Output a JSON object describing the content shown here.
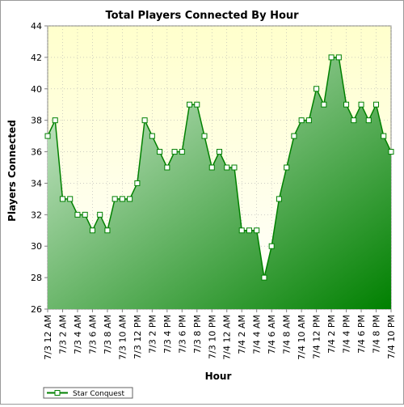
{
  "chart_data": {
    "type": "area",
    "title": "Total Players Connected By Hour",
    "xlabel": "Hour",
    "ylabel": "Players Connected",
    "ylim": [
      26,
      44
    ],
    "yticks": [
      26,
      28,
      30,
      32,
      34,
      36,
      38,
      40,
      42,
      44
    ],
    "grid": true,
    "legend_position": "bottom-left",
    "x_tick_labels": [
      "7/3 12 AM",
      "7/3 2 AM",
      "7/3 4 AM",
      "7/3 6 AM",
      "7/3 8 AM",
      "7/3 10 AM",
      "7/3 12 PM",
      "7/3 2 PM",
      "7/3 4 PM",
      "7/3 6 PM",
      "7/3 8 PM",
      "7/3 10 PM",
      "7/4 12 AM",
      "7/4 2 AM",
      "7/4 4 AM",
      "7/4 6 AM",
      "7/4 8 AM",
      "7/4 10 AM",
      "7/4 12 PM",
      "7/4 2 PM",
      "7/4 4 PM",
      "7/4 6 PM",
      "7/4 8 PM",
      "7/4 10 PM"
    ],
    "series": [
      {
        "name": "Star Conquest",
        "color": "#008000",
        "values": [
          37,
          38,
          33,
          33,
          32,
          32,
          31,
          32,
          31,
          33,
          33,
          33,
          34,
          38,
          37,
          36,
          35,
          36,
          36,
          39,
          39,
          37,
          35,
          36,
          35,
          35,
          31,
          31,
          31,
          28,
          30,
          33,
          35,
          37,
          38,
          38,
          40,
          39,
          42,
          42,
          39,
          38,
          39,
          38,
          39,
          37,
          36
        ]
      }
    ],
    "colors": {
      "plot_bg_top": "#ffffcc",
      "plot_bg_bottom": "#ffffff",
      "area_light": "#d8eed8",
      "area_dark": "#008000",
      "line": "#008000",
      "grid": "#b0b0b0"
    }
  }
}
